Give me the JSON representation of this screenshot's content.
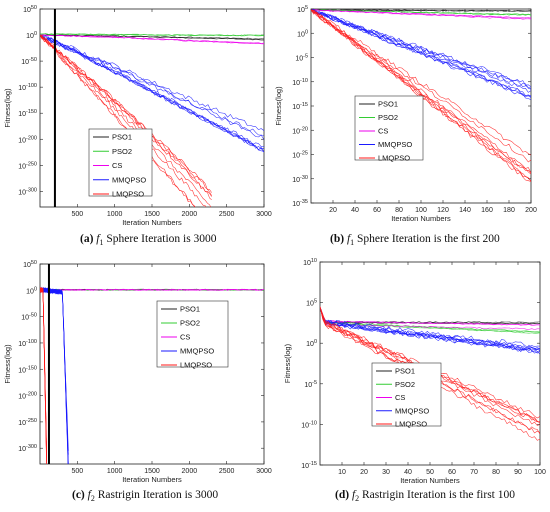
{
  "chart_data": [
    {
      "id": "a",
      "type": "line",
      "caption_letter": "(a)",
      "caption_fn": "f",
      "caption_sub": "1",
      "caption_text": "Sphere Iteration is 3000",
      "xlabel": "Iteration Numbers",
      "ylabel": "Fitness(log)",
      "xlim": [
        0,
        3000
      ],
      "ylim": [
        -330,
        50
      ],
      "x_ticks": [
        500,
        1000,
        1500,
        2000,
        2500,
        3000
      ],
      "y_ticks": [
        50,
        0,
        -50,
        -100,
        -150,
        -200,
        -250,
        -300
      ],
      "y_tick_labels": [
        "10^50",
        "10^0",
        "10^-50",
        "10^-100",
        "10^-150",
        "10^-200",
        "10^-250",
        "10^-300"
      ],
      "vline_x": 200,
      "legend": [
        "PSO1",
        "PSO2",
        "CS",
        "MMQPSO",
        "LMQPSO"
      ],
      "series": [
        {
          "name": "PSO1",
          "color": "#222222",
          "x": [
            0,
            1000,
            2000,
            3000
          ],
          "y": [
            0,
            -2,
            -5,
            -8
          ]
        },
        {
          "name": "PSO2",
          "color": "#33cc33",
          "x": [
            0,
            1000,
            2000,
            3000
          ],
          "y": [
            2,
            1,
            0,
            -0.5
          ]
        },
        {
          "name": "CS",
          "color": "#ee00ee",
          "x": [
            0,
            1000,
            2000,
            3000
          ],
          "y": [
            0,
            -4,
            -10,
            -15
          ]
        },
        {
          "name": "MMQPSO",
          "color": "#1a1aff",
          "x": [
            0,
            1000,
            2000,
            3000
          ],
          "y": [
            0,
            -65,
            -135,
            -205
          ]
        },
        {
          "name": "LMQPSO",
          "color": "#ff1a1a",
          "x": [
            0,
            1000,
            2000,
            2300
          ],
          "y": [
            0,
            -140,
            -290,
            -340
          ]
        }
      ]
    },
    {
      "id": "b",
      "type": "line",
      "caption_letter": "(b)",
      "caption_fn": "f",
      "caption_sub": "1",
      "caption_text": "Sphere Iteration is the first 200",
      "xlabel": "Iteration Numbers",
      "ylabel": "Fitness(log)",
      "xlim": [
        0,
        200
      ],
      "ylim": [
        -35,
        5
      ],
      "x_ticks": [
        20,
        40,
        60,
        80,
        100,
        120,
        140,
        160,
        180,
        200
      ],
      "y_ticks": [
        5,
        0,
        -5,
        -10,
        -15,
        -20,
        -25,
        -30,
        -35
      ],
      "y_tick_labels": [
        "10^5",
        "10^0",
        "10^-5",
        "10^-10",
        "10^-15",
        "10^-20",
        "10^-25",
        "10^-30",
        "10^-35"
      ],
      "legend": [
        "PSO1",
        "PSO2",
        "CS",
        "MMQPSO",
        "LMQPSO"
      ],
      "series": [
        {
          "name": "PSO1",
          "color": "#222222",
          "x": [
            0,
            200
          ],
          "y": [
            4.8,
            4.6
          ]
        },
        {
          "name": "PSO2",
          "color": "#33cc33",
          "x": [
            0,
            200
          ],
          "y": [
            4.8,
            3.8
          ]
        },
        {
          "name": "CS",
          "color": "#ee00ee",
          "x": [
            0,
            200
          ],
          "y": [
            4.8,
            3.0
          ]
        },
        {
          "name": "MMQPSO",
          "color": "#1a1aff",
          "x": [
            0,
            200
          ],
          "y": [
            4.8,
            -12.5
          ]
        },
        {
          "name": "LMQPSO",
          "color": "#ff1a1a",
          "x": [
            0,
            200
          ],
          "y": [
            4.8,
            -27.5
          ]
        }
      ]
    },
    {
      "id": "c",
      "type": "line",
      "caption_letter": "(c)",
      "caption_fn": "f",
      "caption_sub": "2",
      "caption_text": "Rastrigin Iteration is 3000",
      "xlabel": "Iteration Numbers",
      "ylabel": "Fitness(log)",
      "xlim": [
        0,
        3000
      ],
      "ylim": [
        -330,
        50
      ],
      "x_ticks": [
        500,
        1000,
        1500,
        2000,
        2500,
        3000
      ],
      "y_ticks": [
        50,
        0,
        -50,
        -100,
        -150,
        -200,
        -250,
        -300
      ],
      "y_tick_labels": [
        "10^50",
        "10^0",
        "10^-50",
        "10^-100",
        "10^-150",
        "10^-200",
        "10^-250",
        "10^-300"
      ],
      "vline_x": 120,
      "legend": [
        "PSO1",
        "PSO2",
        "CS",
        "MMQPSO",
        "LMQPSO"
      ],
      "series": [
        {
          "name": "PSO1",
          "color": "#222222",
          "x": [
            0,
            3000
          ],
          "y": [
            1,
            1
          ]
        },
        {
          "name": "PSO2",
          "color": "#33cc33",
          "x": [
            0,
            3000
          ],
          "y": [
            1,
            1
          ]
        },
        {
          "name": "CS",
          "color": "#ee00ee",
          "x": [
            0,
            3000
          ],
          "y": [
            1,
            1
          ]
        },
        {
          "name": "MMQPSO",
          "color": "#1a1aff",
          "x": [
            0,
            100,
            200,
            300,
            380
          ],
          "y": [
            1,
            0,
            -2,
            -4,
            -330
          ]
        },
        {
          "name": "LMQPSO",
          "color": "#ff1a1a",
          "x": [
            0,
            40,
            90
          ],
          "y": [
            1,
            0,
            -330
          ]
        }
      ]
    },
    {
      "id": "d",
      "type": "line",
      "caption_letter": "(d)",
      "caption_fn": "f",
      "caption_sub": "2",
      "caption_text": "Rastrigin Iteration is the first 100",
      "xlabel": "Iteration Numbers",
      "ylabel": "Fitness(log)",
      "xlim": [
        0,
        100
      ],
      "ylim": [
        -15,
        10
      ],
      "x_ticks": [
        10,
        20,
        30,
        40,
        50,
        60,
        70,
        80,
        90,
        100
      ],
      "y_ticks": [
        10,
        5,
        0,
        -5,
        -10,
        -15
      ],
      "y_tick_labels": [
        "10^10",
        "10^5",
        "10^0",
        "10^-5",
        "10^-10",
        "10^-15"
      ],
      "legend": [
        "PSO1",
        "PSO2",
        "CS",
        "MMQPSO",
        "LMQPSO"
      ],
      "series": [
        {
          "name": "PSO1",
          "color": "#222222",
          "x": [
            0,
            2,
            100
          ],
          "y": [
            4.5,
            2.5,
            2.4
          ]
        },
        {
          "name": "PSO2",
          "color": "#33cc33",
          "x": [
            0,
            2,
            100
          ],
          "y": [
            4.5,
            2.5,
            1.3
          ]
        },
        {
          "name": "CS",
          "color": "#ee00ee",
          "x": [
            0,
            2,
            100
          ],
          "y": [
            4.5,
            2.5,
            2.0
          ]
        },
        {
          "name": "MMQPSO",
          "color": "#1a1aff",
          "x": [
            0,
            2,
            100
          ],
          "y": [
            4.5,
            2.5,
            -1.0
          ]
        },
        {
          "name": "LMQPSO",
          "color": "#ff1a1a",
          "x": [
            0,
            2,
            100
          ],
          "y": [
            4.5,
            2.5,
            -10.5
          ]
        }
      ]
    }
  ]
}
